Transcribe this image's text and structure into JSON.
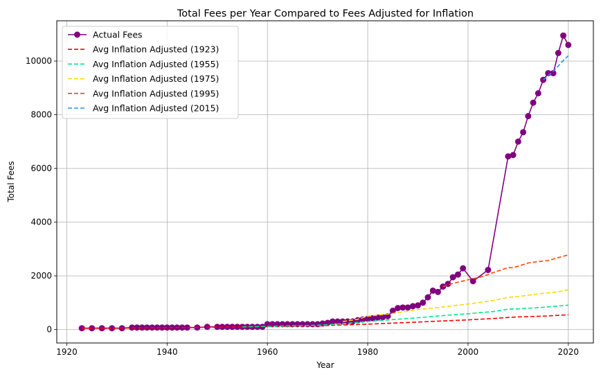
{
  "chart_data": {
    "type": "line",
    "title": "Total Fees per Year Compared to Fees Adjusted for Inflation",
    "xlabel": "Year",
    "ylabel": "Total Fees",
    "xlim": [
      1918,
      2025
    ],
    "ylim": [
      -500,
      11500
    ],
    "xticks": [
      1920,
      1940,
      1960,
      1980,
      2000,
      2020
    ],
    "yticks": [
      0,
      2000,
      4000,
      6000,
      8000,
      10000
    ],
    "grid": true,
    "legend_position": "top-left",
    "series": [
      {
        "name": "Actual Fees",
        "color": "#800080",
        "style": "solid-markers",
        "points": [
          [
            1923,
            50
          ],
          [
            1925,
            50
          ],
          [
            1927,
            50
          ],
          [
            1929,
            50
          ],
          [
            1931,
            50
          ],
          [
            1933,
            75
          ],
          [
            1934,
            75
          ],
          [
            1935,
            75
          ],
          [
            1936,
            75
          ],
          [
            1937,
            75
          ],
          [
            1938,
            75
          ],
          [
            1939,
            75
          ],
          [
            1940,
            75
          ],
          [
            1941,
            75
          ],
          [
            1942,
            75
          ],
          [
            1943,
            75
          ],
          [
            1944,
            75
          ],
          [
            1946,
            75
          ],
          [
            1948,
            100
          ],
          [
            1950,
            100
          ],
          [
            1951,
            100
          ],
          [
            1952,
            100
          ],
          [
            1953,
            100
          ],
          [
            1954,
            100
          ],
          [
            1955,
            100
          ],
          [
            1956,
            100
          ],
          [
            1957,
            100
          ],
          [
            1958,
            100
          ],
          [
            1959,
            100
          ],
          [
            1960,
            200
          ],
          [
            1961,
            200
          ],
          [
            1962,
            200
          ],
          [
            1963,
            200
          ],
          [
            1964,
            200
          ],
          [
            1965,
            200
          ],
          [
            1966,
            200
          ],
          [
            1967,
            200
          ],
          [
            1968,
            200
          ],
          [
            1969,
            200
          ],
          [
            1970,
            200
          ],
          [
            1971,
            225
          ],
          [
            1972,
            250
          ],
          [
            1973,
            300
          ],
          [
            1974,
            300
          ],
          [
            1975,
            300
          ],
          [
            1976,
            300
          ],
          [
            1977,
            300
          ],
          [
            1978,
            350
          ],
          [
            1979,
            375
          ],
          [
            1980,
            400
          ],
          [
            1981,
            420
          ],
          [
            1982,
            450
          ],
          [
            1983,
            460
          ],
          [
            1984,
            500
          ],
          [
            1985,
            700
          ],
          [
            1986,
            800
          ],
          [
            1987,
            820
          ],
          [
            1988,
            820
          ],
          [
            1989,
            870
          ],
          [
            1990,
            900
          ],
          [
            1991,
            1000
          ],
          [
            1992,
            1200
          ],
          [
            1993,
            1450
          ],
          [
            1994,
            1400
          ],
          [
            1995,
            1600
          ],
          [
            1996,
            1700
          ],
          [
            1997,
            1950
          ],
          [
            1998,
            2050
          ],
          [
            1999,
            2280
          ],
          [
            2001,
            1800
          ],
          [
            2004,
            2220
          ],
          [
            2008,
            6450
          ],
          [
            2009,
            6500
          ],
          [
            2010,
            7000
          ],
          [
            2011,
            7350
          ],
          [
            2012,
            7950
          ],
          [
            2013,
            8450
          ],
          [
            2014,
            8800
          ],
          [
            2015,
            9300
          ],
          [
            2016,
            9550
          ],
          [
            2017,
            9550
          ],
          [
            2018,
            10300
          ],
          [
            2019,
            10950
          ],
          [
            2020,
            10600
          ]
        ]
      },
      {
        "name": "Avg Inflation Adjusted (1923)",
        "color": "#ff0000",
        "style": "dashed",
        "points": [
          [
            1923,
            50
          ],
          [
            1930,
            55
          ],
          [
            1940,
            70
          ],
          [
            1950,
            90
          ],
          [
            1960,
            110
          ],
          [
            1970,
            140
          ],
          [
            1975,
            170
          ],
          [
            1980,
            200
          ],
          [
            1985,
            240
          ],
          [
            1990,
            280
          ],
          [
            1995,
            320
          ],
          [
            2000,
            360
          ],
          [
            2005,
            410
          ],
          [
            2008,
            450
          ],
          [
            2010,
            470
          ],
          [
            2015,
            500
          ],
          [
            2020,
            550
          ]
        ]
      },
      {
        "name": "Avg Inflation Adjusted (1955)",
        "color": "#00e58a",
        "style": "dashed",
        "points": [
          [
            1955,
            100
          ],
          [
            1960,
            120
          ],
          [
            1965,
            140
          ],
          [
            1970,
            160
          ],
          [
            1975,
            220
          ],
          [
            1980,
            300
          ],
          [
            1985,
            370
          ],
          [
            1990,
            440
          ],
          [
            1995,
            520
          ],
          [
            2000,
            590
          ],
          [
            2005,
            670
          ],
          [
            2008,
            760
          ],
          [
            2010,
            770
          ],
          [
            2015,
            830
          ],
          [
            2020,
            910
          ]
        ]
      },
      {
        "name": "Avg Inflation Adjusted (1975)",
        "color": "#ffd700",
        "style": "dashed",
        "points": [
          [
            1975,
            300
          ],
          [
            1978,
            380
          ],
          [
            1980,
            500
          ],
          [
            1985,
            600
          ],
          [
            1990,
            740
          ],
          [
            1995,
            840
          ],
          [
            2000,
            950
          ],
          [
            2005,
            1080
          ],
          [
            2008,
            1200
          ],
          [
            2010,
            1230
          ],
          [
            2015,
            1350
          ],
          [
            2017,
            1380
          ],
          [
            2020,
            1480
          ]
        ]
      },
      {
        "name": "Avg Inflation Adjusted (1995)",
        "color": "#ff4500",
        "style": "dashed",
        "points": [
          [
            1995,
            1600
          ],
          [
            1997,
            1720
          ],
          [
            2000,
            1850
          ],
          [
            2003,
            1980
          ],
          [
            2005,
            2120
          ],
          [
            2008,
            2310
          ],
          [
            2009,
            2300
          ],
          [
            2010,
            2360
          ],
          [
            2012,
            2480
          ],
          [
            2014,
            2530
          ],
          [
            2016,
            2570
          ],
          [
            2018,
            2680
          ],
          [
            2020,
            2780
          ]
        ]
      },
      {
        "name": "Avg Inflation Adjusted (2015)",
        "color": "#1e90ff",
        "style": "dashed",
        "points": [
          [
            2015,
            9300
          ],
          [
            2016,
            9450
          ],
          [
            2017,
            9620
          ],
          [
            2018,
            9820
          ],
          [
            2019,
            10020
          ],
          [
            2020,
            10200
          ]
        ]
      }
    ]
  }
}
